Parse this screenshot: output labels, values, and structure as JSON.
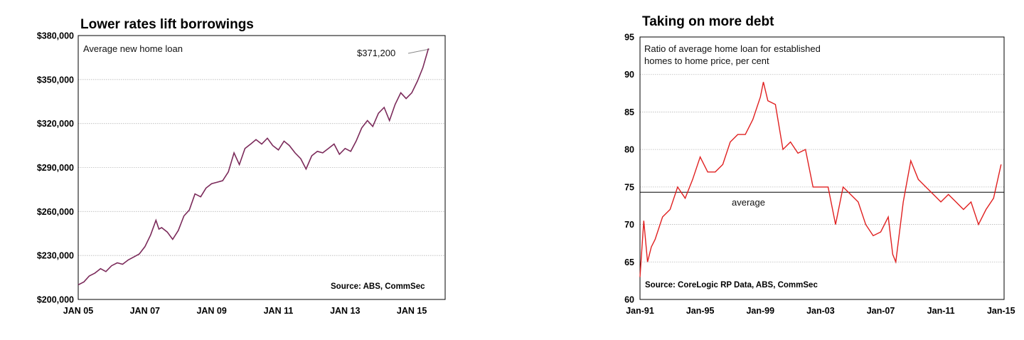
{
  "chart_data": [
    {
      "type": "line",
      "title": "Lower rates lift borrowings",
      "annotation": "Average new home loan",
      "value_label": "$371,200",
      "source": "Source: ABS, CommSec",
      "ylim": [
        200000,
        380000
      ],
      "yticks": [
        {
          "value": 200000,
          "label": "$200,000"
        },
        {
          "value": 230000,
          "label": "$230,000"
        },
        {
          "value": 260000,
          "label": "$260,000"
        },
        {
          "value": 290000,
          "label": "$290,000"
        },
        {
          "value": 320000,
          "label": "$320,000"
        },
        {
          "value": 350000,
          "label": "$350,000"
        },
        {
          "value": 380000,
          "label": "$380,000"
        }
      ],
      "xlim": [
        2005.0,
        2016.0
      ],
      "xticks": [
        {
          "value": 2005,
          "label": "JAN 05"
        },
        {
          "value": 2007,
          "label": "JAN 07"
        },
        {
          "value": 2009,
          "label": "JAN 09"
        },
        {
          "value": 2011,
          "label": "JAN 11"
        },
        {
          "value": 2013,
          "label": "JAN 13"
        },
        {
          "value": 2015,
          "label": "JAN 15"
        }
      ],
      "color": "#7b2a5a",
      "series": [
        {
          "x": [
            2005.0,
            2005.17,
            2005.33,
            2005.5,
            2005.67,
            2005.83,
            2006.0,
            2006.17,
            2006.33,
            2006.5,
            2006.67,
            2006.83,
            2007.0,
            2007.17,
            2007.33,
            2007.42,
            2007.5,
            2007.67,
            2007.83,
            2008.0,
            2008.17,
            2008.33,
            2008.5,
            2008.67,
            2008.83,
            2009.0,
            2009.17,
            2009.33,
            2009.5,
            2009.67,
            2009.83,
            2010.0,
            2010.17,
            2010.33,
            2010.5,
            2010.67,
            2010.83,
            2011.0,
            2011.17,
            2011.33,
            2011.5,
            2011.67,
            2011.83,
            2012.0,
            2012.17,
            2012.33,
            2012.5,
            2012.67,
            2012.83,
            2013.0,
            2013.17,
            2013.33,
            2013.5,
            2013.67,
            2013.83,
            2014.0,
            2014.17,
            2014.33,
            2014.5,
            2014.67,
            2014.83,
            2015.0,
            2015.17,
            2015.33,
            2015.5
          ],
          "y": [
            210000,
            212000,
            216000,
            218000,
            221000,
            219000,
            223000,
            225000,
            224000,
            227000,
            229000,
            231000,
            236000,
            244000,
            254000,
            248000,
            249000,
            246000,
            241000,
            247000,
            257000,
            261000,
            272000,
            270000,
            276000,
            279000,
            280000,
            281000,
            287000,
            300000,
            292000,
            303000,
            306000,
            309000,
            306000,
            310000,
            305000,
            302000,
            308000,
            305000,
            300000,
            296000,
            289000,
            298000,
            301000,
            300000,
            303000,
            306000,
            299000,
            303000,
            301000,
            308000,
            317000,
            322000,
            318000,
            327000,
            331000,
            322000,
            333000,
            341000,
            337000,
            341000,
            349000,
            358000,
            371200
          ]
        }
      ]
    },
    {
      "type": "line",
      "title": "Taking on more debt",
      "annotation_line1": "Ratio of average home loan for established",
      "annotation_line2": "homes to home price, per cent",
      "average_label": "average",
      "average_value": 74.3,
      "source": "Source: CoreLogic RP Data, ABS, CommSec",
      "ylim": [
        60,
        95
      ],
      "yticks": [
        {
          "value": 60,
          "label": "60"
        },
        {
          "value": 65,
          "label": "65"
        },
        {
          "value": 70,
          "label": "70"
        },
        {
          "value": 75,
          "label": "75"
        },
        {
          "value": 80,
          "label": "80"
        },
        {
          "value": 85,
          "label": "85"
        },
        {
          "value": 90,
          "label": "90"
        },
        {
          "value": 95,
          "label": "95"
        }
      ],
      "xlim": [
        1991.0,
        2015.2
      ],
      "xticks": [
        {
          "value": 1991,
          "label": "Jan-91"
        },
        {
          "value": 1995,
          "label": "Jan-95"
        },
        {
          "value": 1999,
          "label": "Jan-99"
        },
        {
          "value": 2003,
          "label": "Jan-03"
        },
        {
          "value": 2007,
          "label": "Jan-07"
        },
        {
          "value": 2011,
          "label": "Jan-11"
        },
        {
          "value": 2015,
          "label": "Jan-15"
        }
      ],
      "color": "#e02020",
      "series": [
        {
          "x": [
            1991.0,
            1991.25,
            1991.5,
            1991.75,
            1992.0,
            1992.5,
            1993.0,
            1993.5,
            1994.0,
            1994.5,
            1995.0,
            1995.5,
            1996.0,
            1996.5,
            1997.0,
            1997.5,
            1998.0,
            1998.5,
            1999.0,
            1999.2,
            1999.5,
            2000.0,
            2000.5,
            2001.0,
            2001.5,
            2002.0,
            2002.5,
            2003.0,
            2003.5,
            2004.0,
            2004.5,
            2005.0,
            2005.5,
            2006.0,
            2006.5,
            2007.0,
            2007.5,
            2007.8,
            2008.0,
            2008.5,
            2009.0,
            2009.5,
            2010.0,
            2010.5,
            2011.0,
            2011.5,
            2012.0,
            2012.5,
            2013.0,
            2013.5,
            2014.0,
            2014.5,
            2015.0
          ],
          "y": [
            63,
            70.5,
            65,
            67,
            68,
            71,
            72,
            75,
            73.5,
            76,
            79,
            77,
            77,
            78,
            81,
            82,
            82,
            84,
            87,
            89,
            86.5,
            86,
            80,
            81,
            79.5,
            80,
            75,
            75,
            75,
            70,
            75,
            74,
            73,
            70,
            68.5,
            69,
            71,
            66,
            65,
            73,
            78.5,
            76,
            75,
            74,
            73,
            74,
            73,
            72,
            73,
            70,
            72,
            73.5,
            78
          ]
        }
      ]
    }
  ]
}
